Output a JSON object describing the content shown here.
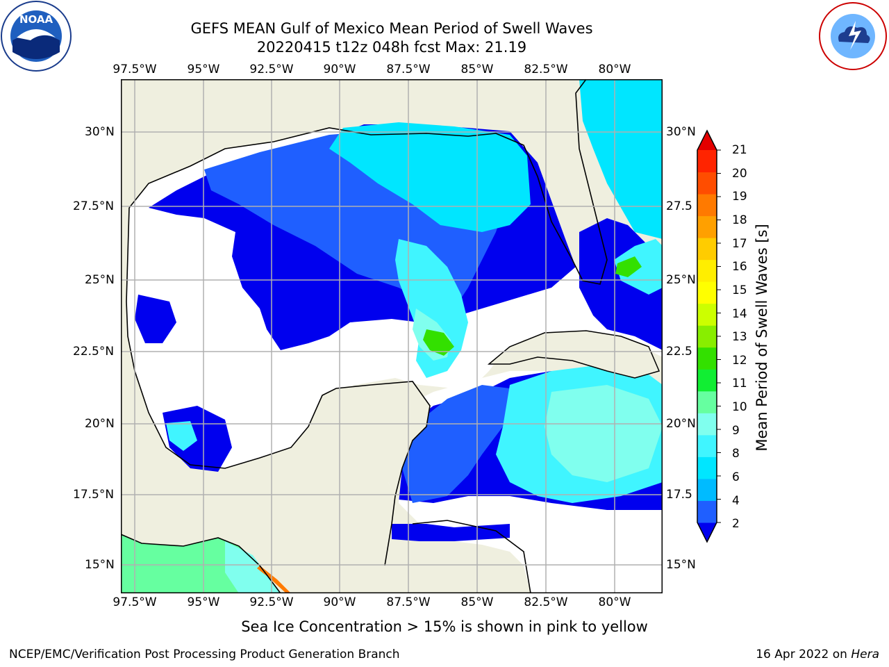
{
  "title_line1": "GEFS MEAN Gulf of Mexico Mean Period of Swell Waves",
  "title_line2": "20220415 t12z 048h fcst   Max: 21.19",
  "lon_labels": [
    "97.5°W",
    "95°W",
    "92.5°W",
    "90°W",
    "87.5°W",
    "85°W",
    "82.5°W",
    "80°W"
  ],
  "lat_labels_left": [
    "30°N",
    "27.5°N",
    "25°N",
    "22.5°N",
    "20°N",
    "17.5°N",
    "15°N"
  ],
  "lat_labels_right": [
    "30°N",
    "27.5",
    "25°N",
    "22.5",
    "20°N",
    "17.5",
    "15°N"
  ],
  "colorbar": {
    "label": "Mean Period of Swell Waves [s]",
    "ticks": [
      "21",
      "20",
      "19",
      "18",
      "17",
      "16",
      "15",
      "14",
      "13",
      "12",
      "11",
      "10",
      "9",
      "8",
      "6",
      "4",
      "2"
    ],
    "colors": [
      "#0000ee",
      "#1f5fff",
      "#00bbff",
      "#00e6ff",
      "#40f5ff",
      "#80ffee",
      "#66ffa0",
      "#11ee33",
      "#33e000",
      "#88ee00",
      "#ccff00",
      "#ffff00",
      "#ffee00",
      "#ffcc00",
      "#ffa000",
      "#ff7a00",
      "#ff4d00",
      "#ff2400",
      "#e40000"
    ]
  },
  "ice_note": "Sea Ice Concentration > 15% is shown in pink to yellow",
  "footer_left": "NCEP/EMC/Verification Post Processing Product Generation Branch",
  "footer_date": "16 Apr 2022 on",
  "footer_machine": "Hera",
  "logos": {
    "left": "NOAA",
    "right": "NATIONAL WEATHER SERVICE"
  },
  "colors": {
    "land": "#efefdf",
    "grid": "#b0b0b0",
    "no_data": "#ffffff"
  }
}
